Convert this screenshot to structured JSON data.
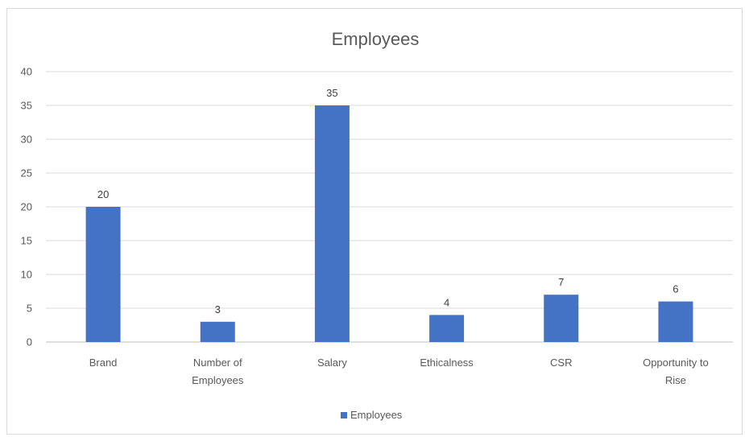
{
  "chart_data": {
    "type": "bar",
    "title": "Employees",
    "categories": [
      [
        "Brand"
      ],
      [
        "Number of",
        "Employees"
      ],
      [
        "Salary"
      ],
      [
        "Ethicalness"
      ],
      [
        "CSR"
      ],
      [
        "Opportunity to",
        "Rise"
      ]
    ],
    "series": [
      {
        "name": "Employees",
        "values": [
          20,
          3,
          35,
          4,
          7,
          6
        ],
        "color": "#4472c4"
      }
    ],
    "ylim": [
      0,
      40
    ],
    "yticks": [
      0,
      5,
      10,
      15,
      20,
      25,
      30,
      35,
      40
    ],
    "grid": true,
    "legend": "bottom",
    "xlabel": "",
    "ylabel": ""
  }
}
